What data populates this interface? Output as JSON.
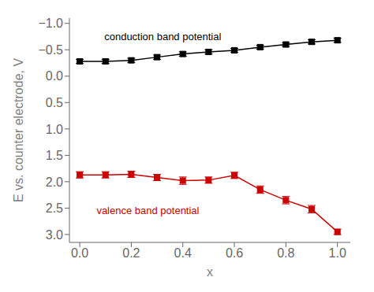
{
  "chart_data": {
    "type": "line",
    "xlabel": "x",
    "ylabel": "E vs. counter electrode, V",
    "x": [
      0.0,
      0.1,
      0.2,
      0.3,
      0.4,
      0.5,
      0.6,
      0.7,
      0.8,
      0.9,
      1.0
    ],
    "series": [
      {
        "color": "#000000",
        "marker": "square",
        "values": [
          -0.28,
          -0.28,
          -0.3,
          -0.36,
          -0.42,
          -0.46,
          -0.49,
          -0.55,
          -0.6,
          -0.65,
          -0.68
        ],
        "errors": [
          0.04,
          0.04,
          0.04,
          0.04,
          0.04,
          0.04,
          0.035,
          0.035,
          0.035,
          0.04,
          0.04
        ]
      },
      {
        "color": "#cc0000",
        "marker": "square",
        "values": [
          1.87,
          1.87,
          1.86,
          1.92,
          1.98,
          1.97,
          1.88,
          2.15,
          2.35,
          2.52,
          2.95
        ],
        "errors": [
          0.06,
          0.06,
          0.06,
          0.06,
          0.07,
          0.06,
          0.06,
          0.07,
          0.07,
          0.07,
          0.05
        ]
      }
    ],
    "annotations": [
      {
        "text": "conduction band potential",
        "x": 0.08,
        "y": -0.75,
        "color": "#000000"
      },
      {
        "text": "valence band potential",
        "x": 0.05,
        "y": 2.55,
        "color": "#cc0000"
      }
    ],
    "xlim": [
      -0.04,
      1.05
    ],
    "ylim": [
      3.15,
      -1.1
    ],
    "xticks": [
      {
        "value": 0.0,
        "label": "0.0"
      },
      0.2,
      0.4,
      0.6,
      0.8,
      {
        "value": 1.0,
        "label": "1.0"
      }
    ],
    "yticks": [
      {
        "value": -1.0,
        "label": "−1.0"
      },
      {
        "value": -0.5,
        "label": "−0.5"
      },
      {
        "value": 0.0,
        "label": "0.0"
      },
      {
        "value": 0.5,
        "label": "0.5"
      },
      {
        "value": 1.0,
        "label": "1.0"
      },
      {
        "value": 1.5,
        "label": "1.5"
      },
      {
        "value": 2.0,
        "label": "2.0"
      },
      {
        "value": 2.5,
        "label": "2.5"
      },
      {
        "value": 3.0,
        "label": "3.0"
      }
    ]
  }
}
